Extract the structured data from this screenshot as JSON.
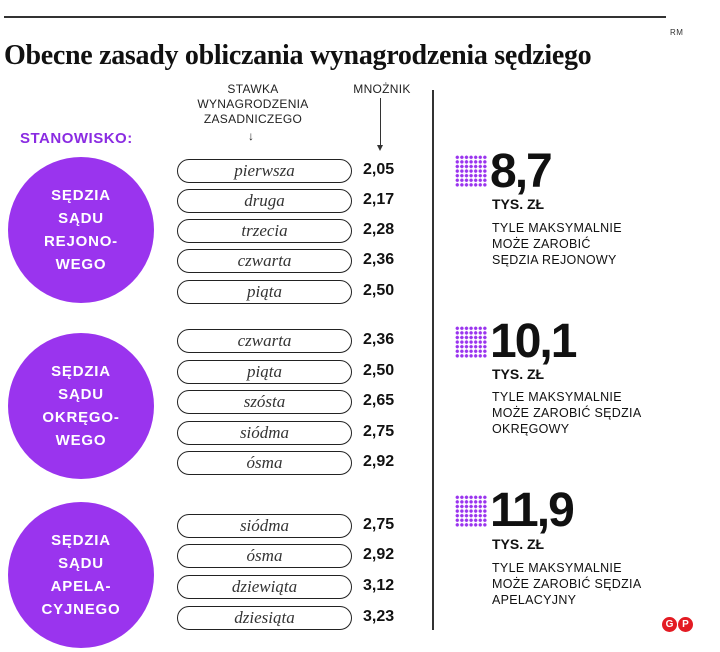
{
  "title": "Obecne zasady obliczania wynagrodzenia sędziego",
  "credit": "RM",
  "column_headers": {
    "rate": "STAWKA\nWYNAGRODZENIA\nZASADNICZEGO",
    "multiplier": "MNOŻNIK"
  },
  "position_label": "STANOWISKO:",
  "groups": [
    {
      "name": "SĘDZIA\nSĄDU\nREJONO-\nWEGO",
      "rows": [
        {
          "rate": "pierwsza",
          "multiplier": "2,05"
        },
        {
          "rate": "druga",
          "multiplier": "2,17"
        },
        {
          "rate": "trzecia",
          "multiplier": "2,28"
        },
        {
          "rate": "czwarta",
          "multiplier": "2,36"
        },
        {
          "rate": "piąta",
          "multiplier": "2,50"
        }
      ],
      "max_value": "8,7",
      "max_unit": "TYS. ZŁ",
      "max_desc": "TYLE MAKSYMALNIE\nMOŻE ZAROBIĆ\nSĘDZIA REJONOWY"
    },
    {
      "name": "SĘDZIA\nSĄDU\nOKRĘGO-\nWEGO",
      "rows": [
        {
          "rate": "czwarta",
          "multiplier": "2,36"
        },
        {
          "rate": "piąta",
          "multiplier": "2,50"
        },
        {
          "rate": "szósta",
          "multiplier": "2,65"
        },
        {
          "rate": "siódma",
          "multiplier": "2,75"
        },
        {
          "rate": "ósma",
          "multiplier": "2,92"
        }
      ],
      "max_value": "10,1",
      "max_unit": "TYS. ZŁ",
      "max_desc": "TYLE MAKSYMALNIE\nMOŻE ZAROBIĆ SĘDZIA\nOKRĘGOWY"
    },
    {
      "name": "SĘDZIA\nSĄDU\nAPELA-\nCYJNEGO",
      "rows": [
        {
          "rate": "siódma",
          "multiplier": "2,75"
        },
        {
          "rate": "ósma",
          "multiplier": "2,92"
        },
        {
          "rate": "dziewiąta",
          "multiplier": "3,12"
        },
        {
          "rate": "dziesiąta",
          "multiplier": "3,23"
        }
      ],
      "max_value": "11,9",
      "max_unit": "TYS. ZŁ",
      "max_desc": "TYLE MAKSYMALNIE\nMOŻE ZAROBIĆ SĘDZIA\nAPELACYJNY"
    }
  ],
  "colors": {
    "accent": "#9a34ee",
    "logo": "#e31b23",
    "text": "#111111"
  },
  "logo_letters": [
    "G",
    "P"
  ]
}
